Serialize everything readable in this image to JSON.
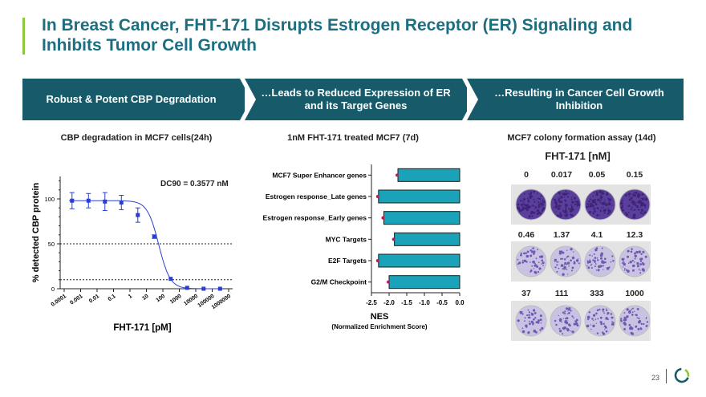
{
  "slide": {
    "title": "In Breast Cancer, FHT-171 Disrupts Estrogen Receptor (ER) Signaling and Inhibits Tumor Cell Growth",
    "page_number": "23",
    "accent_color": "#8dc63f",
    "banner_color": "#175a6a"
  },
  "banners": [
    {
      "label": "Robust & Potent CBP Degradation"
    },
    {
      "label": "…Leads to Reduced Expression of ER and its Target Genes"
    },
    {
      "label": "…Resulting in Cancer Cell Growth Inhibition"
    }
  ],
  "panel1": {
    "subtitle": "CBP degradation in MCF7 cells(24h)",
    "annotation": "DC90 = 0.3577 nM",
    "chart_data": {
      "type": "scatter",
      "title": "CBP degradation in MCF7 cells(24h)",
      "xlabel": "FHT-171 [pM]",
      "ylabel": "% detected CBP protein",
      "x_scale": "log",
      "x_ticks": [
        "0.0001",
        "0.001",
        "0.01",
        "0.1",
        "1",
        "10",
        "100",
        "1000",
        "10000",
        "100000",
        "1000000"
      ],
      "y_ticks": [
        "0",
        "50",
        "100"
      ],
      "ylim": [
        0,
        125
      ],
      "reference_lines": [
        50,
        10
      ],
      "points": [
        {
          "x": 0.0003,
          "y": 98,
          "err": 9
        },
        {
          "x": 0.003,
          "y": 98,
          "err": 8
        },
        {
          "x": 0.03,
          "y": 97,
          "err": 10
        },
        {
          "x": 0.3,
          "y": 96,
          "err": 8
        },
        {
          "x": 3,
          "y": 82,
          "err": 8
        },
        {
          "x": 30,
          "y": 58,
          "err": 2
        },
        {
          "x": 300,
          "y": 11,
          "err": 0
        },
        {
          "x": 3000,
          "y": 1,
          "err": 0
        },
        {
          "x": 30000,
          "y": 0,
          "err": 0
        },
        {
          "x": 300000,
          "y": 0,
          "err": 0
        }
      ]
    }
  },
  "panel2": {
    "subtitle": "1nM FHT-171 treated MCF7 (7d)",
    "chart_data": {
      "type": "bar",
      "orientation": "horizontal",
      "title": "1nM FHT-171 treated MCF7 (7d)",
      "xlabel": "NES",
      "xlabel_sub": "(Normalized Enrichment Score)",
      "categories": [
        "MCF7 Super Enhancer genes",
        "Estrogen response_Late genes",
        "Estrogen response_Early genes",
        "MYC Targets",
        "E2F Targets",
        "G2/M Checkpoint"
      ],
      "values": [
        -1.75,
        -2.3,
        -2.15,
        -1.85,
        -2.3,
        -2.0
      ],
      "x_ticks": [
        "-2.5",
        "-2.0",
        "-1.5",
        "-1.0",
        "-0.5",
        "0.0"
      ],
      "xlim": [
        -2.5,
        0
      ],
      "bar_color": "#1aa3b8"
    }
  },
  "panel3": {
    "subtitle": "MCF7 colony formation assay (14d)",
    "title": "FHT-171 [nM]",
    "rows": [
      {
        "concentrations": [
          "0",
          "0.017",
          "0.05",
          "0.15"
        ],
        "density": [
          0.95,
          0.9,
          0.85,
          0.75
        ]
      },
      {
        "concentrations": [
          "0.46",
          "1.37",
          "4.1",
          "12.3"
        ],
        "density": [
          0.45,
          0.35,
          0.4,
          0.4
        ]
      },
      {
        "concentrations": [
          "37",
          "111",
          "333",
          "1000"
        ],
        "density": [
          0.35,
          0.4,
          0.4,
          0.4
        ]
      }
    ]
  }
}
